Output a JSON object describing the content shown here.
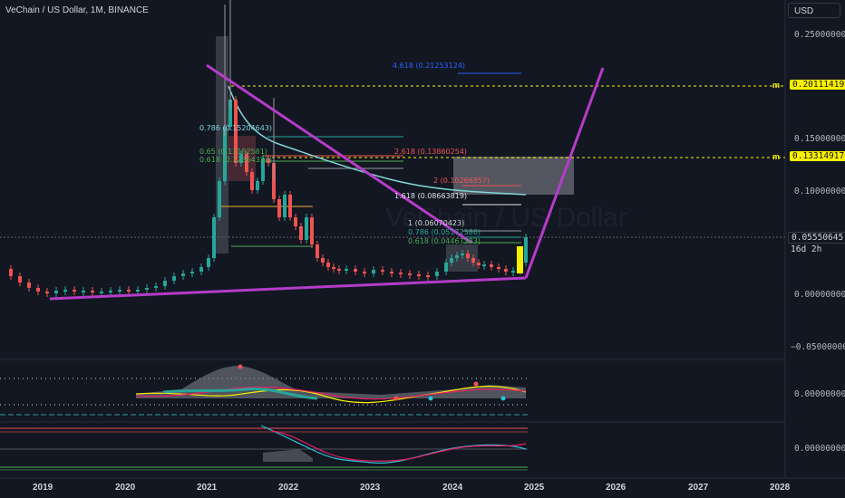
{
  "header": {
    "symbol_title": "VeChain / US Dollar, 1M, BINANCE",
    "currency": "USD"
  },
  "colors": {
    "bg": "#131722",
    "up": "#26a69a",
    "down": "#ef5350",
    "trend": "#b53cc8",
    "ma": "#7fd6d8",
    "fib_blue": "#2962ff",
    "yellow": "#f9f000"
  },
  "price_axis": {
    "labels": [
      "0.25000000",
      "0.15000000",
      "0.10000000",
      "0.00000000",
      "−0.05000000"
    ],
    "current_price": "0.05550645",
    "countdown": "16d 2h",
    "level_high": "0.20111419",
    "level_mid": "0.13314917",
    "level_marker": "m"
  },
  "indicator_axis": {
    "macd_zero": "0.00000000",
    "stoch_zero": "0.00000000"
  },
  "time_axis": {
    "years": [
      "2019",
      "2020",
      "2021",
      "2022",
      "2023",
      "2024",
      "2025",
      "2026",
      "2027",
      "2028"
    ]
  },
  "fib_labels": {
    "top": "4.618 (0.21253124)",
    "f786_upper": "0.786 (0.15204643)",
    "f65_upper": "0.65 (0.13182581)",
    "f618_upper": "0.618 (0.12364329)",
    "f2618": "2.618 (0.13860254)",
    "f2": "2 (0.10266857)",
    "f1618": "1.618 (0.08663819)",
    "f1": "1 (0.06070423)",
    "f786": "0.786 (0.05172386)",
    "f618": "0.618 (0.04467383)"
  },
  "watermark": "VeChain / US Dollar"
}
